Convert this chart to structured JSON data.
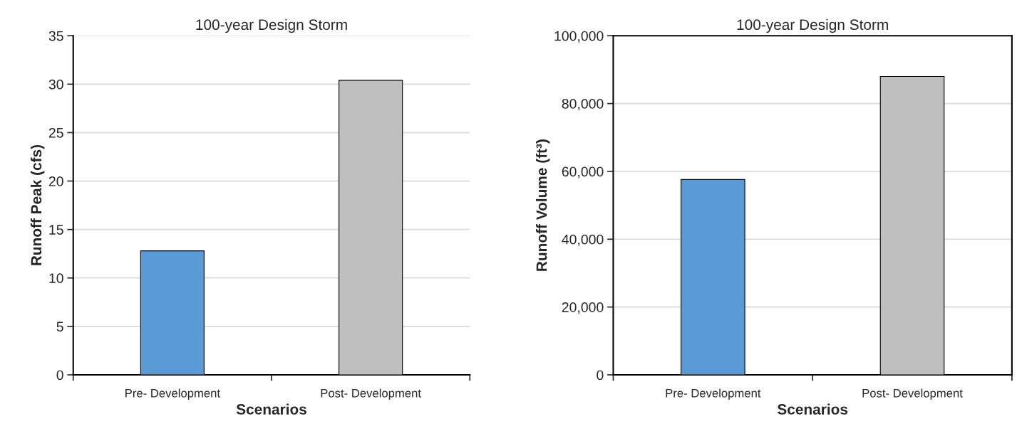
{
  "chart_data": [
    {
      "type": "bar",
      "title": "100-year Design Storm",
      "xlabel": "Scenarios",
      "ylabel": "Runoff Peak (cfs)",
      "categories": [
        "Pre- Development",
        "Post- Development"
      ],
      "values": [
        12.8,
        30.4
      ],
      "colors": [
        "#5b9bd5",
        "#bfbfbf"
      ],
      "ylim": [
        0,
        35
      ],
      "yticks": [
        0,
        5,
        10,
        15,
        20,
        25,
        30,
        35
      ],
      "grid": "y",
      "legend": false
    },
    {
      "type": "bar",
      "title": "100-year Design Storm",
      "xlabel": "Scenarios",
      "ylabel": "Runoff Volume (ft³)",
      "categories": [
        "Pre- Development",
        "Post- Development"
      ],
      "values": [
        57600,
        88000
      ],
      "colors": [
        "#5b9bd5",
        "#bfbfbf"
      ],
      "ylim": [
        0,
        100000
      ],
      "yticks": [
        0,
        {
          "value": 20000,
          "label": "20,000"
        },
        {
          "value": 40000,
          "label": "40,000"
        },
        {
          "value": 60000,
          "label": "60,000"
        },
        {
          "value": 80000,
          "label": "80,000"
        },
        {
          "value": 100000,
          "label": "100,000"
        }
      ],
      "grid": "y",
      "legend": false
    }
  ]
}
